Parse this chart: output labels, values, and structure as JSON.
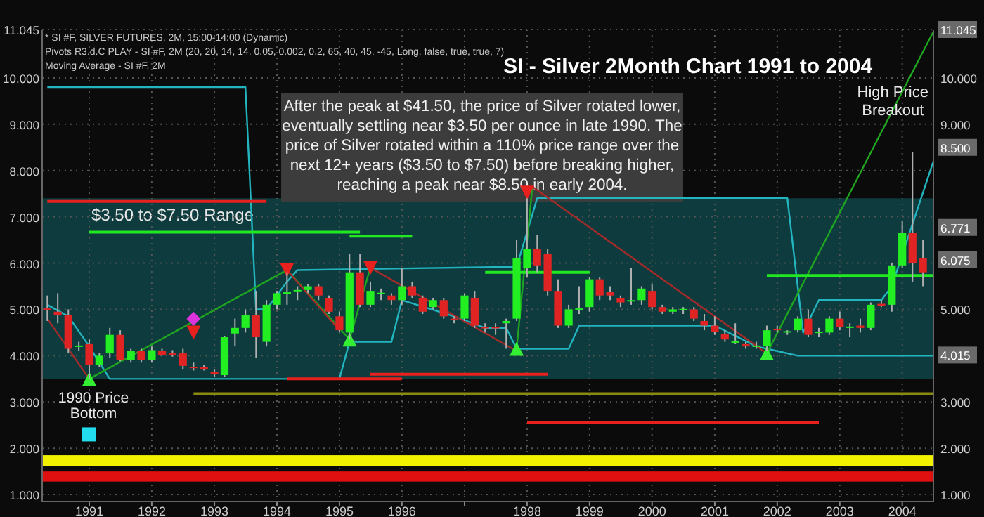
{
  "chart_data": {
    "type": "candlestick",
    "title": "SI - Silver 2Month Chart 1991 to 2004",
    "annotations": [
      "After the peak at $41.50, the price of Silver rotated lower, eventually settling near $3.50 per ounce in late 1990. The price of Silver rotated within a 110% price range over the next 12+ years ($3.50 to $7.50) before breaking higher, reaching a peak near $8.50 in early 2004.",
      "* SI #F, SILVER FUTURES, 2M, 15:00-14:00 (Dynamic)",
      "Pivots R3.d.C PLAY - SI #F, 2M (20, 20, 14, 14, 0.05, 0.002, 0.2, 65, 40, 45, -45, Long, false, true, true, 7)",
      "Moving Average - SI #F, 2M",
      {
        "text": "1990 Price Bottom",
        "x": "1991-01",
        "y": 3.5
      },
      {
        "text": "High Price Breakout",
        "x": "2004-03",
        "y": 8.4
      }
    ],
    "x": [
      "1990-05",
      "1990-07",
      "1990-09",
      "1990-11",
      "1991-01",
      "1991-03",
      "1991-05",
      "1991-07",
      "1991-09",
      "1991-11",
      "1992-01",
      "1992-03",
      "1992-05",
      "1992-07",
      "1992-09",
      "1992-11",
      "1993-01",
      "1993-03",
      "1993-05",
      "1993-07",
      "1993-09",
      "1993-11",
      "1994-01",
      "1994-03",
      "1994-05",
      "1994-07",
      "1994-09",
      "1994-11",
      "1995-01",
      "1995-03",
      "1995-05",
      "1995-07",
      "1995-09",
      "1995-11",
      "1996-01",
      "1996-03",
      "1996-05",
      "1996-07",
      "1996-09",
      "1996-11",
      "1997-01",
      "1997-03",
      "1997-05",
      "1997-07",
      "1997-09",
      "1997-11",
      "1998-01",
      "1998-03",
      "1998-05",
      "1998-07",
      "1998-09",
      "1998-11",
      "1999-01",
      "1999-03",
      "1999-05",
      "1999-07",
      "1999-09",
      "1999-11",
      "2000-01",
      "2000-03",
      "2000-05",
      "2000-07",
      "2000-09",
      "2000-11",
      "2001-01",
      "2001-03",
      "2001-05",
      "2001-07",
      "2001-09",
      "2001-11",
      "2002-01",
      "2002-03",
      "2002-05",
      "2002-07",
      "2002-09",
      "2002-11",
      "2003-01",
      "2003-03",
      "2003-05",
      "2003-07",
      "2003-09",
      "2003-11",
      "2004-01",
      "2004-03",
      "2004-05"
    ],
    "ohlc": [
      [
        5.02,
        5.3,
        4.75,
        4.98
      ],
      [
        4.95,
        5.35,
        4.7,
        4.88
      ],
      [
        4.87,
        5.0,
        4.05,
        4.15
      ],
      [
        4.2,
        4.3,
        4.1,
        4.22
      ],
      [
        4.25,
        4.35,
        3.5,
        3.8
      ],
      [
        3.8,
        4.05,
        3.75,
        4.0
      ],
      [
        4.05,
        4.6,
        3.95,
        4.45
      ],
      [
        4.45,
        4.55,
        3.88,
        3.9
      ],
      [
        3.9,
        4.15,
        3.85,
        4.1
      ],
      [
        4.1,
        4.15,
        3.85,
        3.9
      ],
      [
        3.9,
        4.2,
        3.85,
        4.12
      ],
      [
        4.1,
        4.15,
        4.0,
        4.02
      ],
      [
        4.05,
        4.12,
        3.98,
        4.04
      ],
      [
        4.05,
        4.15,
        3.7,
        3.78
      ],
      [
        3.76,
        3.85,
        3.68,
        3.74
      ],
      [
        3.75,
        3.8,
        3.68,
        3.7
      ],
      [
        3.65,
        3.7,
        3.55,
        3.6
      ],
      [
        3.58,
        4.42,
        3.55,
        4.4
      ],
      [
        4.48,
        4.8,
        4.2,
        4.6
      ],
      [
        4.6,
        5.0,
        4.5,
        4.88
      ],
      [
        4.88,
        5.4,
        3.95,
        4.4
      ],
      [
        4.3,
        5.2,
        4.2,
        5.1
      ],
      [
        5.1,
        5.4,
        5.0,
        5.35
      ],
      [
        5.36,
        5.8,
        5.1,
        5.37
      ],
      [
        5.4,
        5.5,
        5.2,
        5.42
      ],
      [
        5.42,
        5.55,
        5.35,
        5.5
      ],
      [
        5.5,
        5.55,
        5.2,
        5.3
      ],
      [
        5.25,
        5.3,
        4.9,
        4.95
      ],
      [
        4.85,
        4.95,
        4.5,
        4.55
      ],
      [
        4.5,
        6.2,
        4.35,
        5.8
      ],
      [
        5.8,
        6.2,
        5.05,
        5.1
      ],
      [
        5.1,
        5.6,
        5.05,
        5.4
      ],
      [
        5.35,
        5.45,
        5.2,
        5.36
      ],
      [
        5.3,
        5.35,
        5.1,
        5.2
      ],
      [
        5.2,
        5.9,
        5.1,
        5.5
      ],
      [
        5.5,
        5.6,
        5.25,
        5.3
      ],
      [
        5.25,
        5.3,
        4.9,
        4.95
      ],
      [
        5.05,
        5.25,
        5.0,
        5.2
      ],
      [
        5.2,
        5.25,
        4.8,
        4.85
      ],
      [
        4.8,
        4.85,
        4.7,
        4.78
      ],
      [
        4.8,
        5.35,
        4.75,
        5.3
      ],
      [
        5.25,
        5.4,
        4.6,
        4.65
      ],
      [
        4.62,
        4.7,
        4.5,
        4.6
      ],
      [
        4.62,
        4.7,
        4.45,
        4.6
      ],
      [
        4.7,
        4.8,
        4.15,
        4.75
      ],
      [
        4.8,
        6.5,
        4.75,
        6.1
      ],
      [
        5.9,
        7.4,
        5.7,
        6.3
      ],
      [
        6.3,
        6.6,
        5.8,
        5.95
      ],
      [
        6.2,
        6.3,
        5.3,
        5.4
      ],
      [
        5.4,
        5.65,
        4.6,
        4.65
      ],
      [
        4.65,
        5.1,
        4.6,
        5.0
      ],
      [
        5.0,
        5.5,
        4.9,
        5.02
      ],
      [
        5.05,
        5.7,
        4.95,
        5.65
      ],
      [
        5.65,
        5.7,
        5.2,
        5.3
      ],
      [
        5.38,
        5.5,
        5.2,
        5.3
      ],
      [
        5.25,
        5.3,
        5.05,
        5.15
      ],
      [
        5.2,
        5.9,
        5.1,
        5.2
      ],
      [
        5.2,
        5.5,
        5.1,
        5.45
      ],
      [
        5.4,
        5.55,
        5.0,
        5.05
      ],
      [
        5.05,
        5.1,
        4.9,
        4.95
      ],
      [
        4.95,
        5.05,
        4.9,
        5.0
      ],
      [
        5.0,
        5.05,
        4.9,
        5.01
      ],
      [
        5.0,
        5.05,
        4.75,
        4.8
      ],
      [
        4.75,
        4.9,
        4.55,
        4.65
      ],
      [
        4.65,
        4.85,
        4.45,
        4.52
      ],
      [
        4.47,
        4.55,
        4.3,
        4.35
      ],
      [
        4.3,
        4.7,
        4.25,
        4.31
      ],
      [
        4.25,
        4.3,
        4.15,
        4.2
      ],
      [
        4.2,
        4.3,
        4.15,
        4.22
      ],
      [
        4.2,
        4.65,
        4.1,
        4.55
      ],
      [
        4.58,
        4.65,
        4.5,
        4.55
      ],
      [
        4.52,
        4.55,
        4.45,
        4.53
      ],
      [
        4.55,
        4.85,
        4.5,
        4.8
      ],
      [
        4.8,
        5.0,
        4.4,
        4.45
      ],
      [
        4.5,
        4.6,
        4.4,
        4.52
      ],
      [
        4.5,
        4.85,
        4.45,
        4.8
      ],
      [
        4.8,
        4.95,
        4.55,
        4.62
      ],
      [
        4.62,
        4.7,
        4.4,
        4.63
      ],
      [
        4.65,
        4.8,
        4.5,
        4.6
      ],
      [
        4.6,
        5.15,
        4.55,
        5.1
      ],
      [
        5.12,
        5.2,
        5.05,
        5.08
      ],
      [
        5.1,
        6.0,
        4.95,
        5.95
      ],
      [
        5.95,
        6.9,
        5.9,
        6.65
      ],
      [
        6.65,
        8.4,
        5.6,
        6.0
      ],
      [
        6.1,
        6.5,
        5.5,
        5.8
      ]
    ],
    "series": [
      {
        "type": "line",
        "color": "#22b5c0",
        "x": [
          "1990-05",
          "1993-07",
          "1993-09",
          "1993-11",
          "1994-03",
          "1994-05",
          "1997-11",
          "1998-03",
          "2002-03",
          "2002-06",
          "2002-09",
          "2003-09",
          "2003-11",
          "2004-07"
        ],
        "values": [
          9.8,
          9.8,
          5.0,
          5.0,
          5.6,
          5.85,
          5.92,
          7.4,
          7.4,
          4.5,
          5.2,
          5.2,
          5.5,
          8.2
        ]
      },
      {
        "type": "line",
        "color": "#22b5c0",
        "x": [
          "1990-05",
          "1990-09",
          "1991-01",
          "1991-05",
          "1995-01",
          "1995-03",
          "1995-11",
          "1996-01",
          "1996-11",
          "1997-05",
          "1997-09",
          "1997-11",
          "1998-09",
          "1998-11",
          "2001-01",
          "2001-09",
          "2002-01",
          "2002-05",
          "2004-07"
        ],
        "values": [
          5.1,
          4.85,
          4.2,
          3.5,
          3.5,
          4.3,
          4.3,
          5.2,
          4.85,
          4.6,
          4.6,
          4.15,
          4.15,
          4.65,
          4.65,
          4.2,
          4.1,
          4.0,
          4.0
        ]
      },
      {
        "type": "line",
        "color": "#1fa51f",
        "x": [
          "1991-01",
          "1994-03",
          "1995-03",
          "1995-07",
          "1996-01",
          "1997-11",
          "1998-02",
          "1999-01",
          "2001-11",
          "2004-07"
        ],
        "values": [
          3.5,
          5.85,
          4.35,
          5.9,
          null,
          4.15,
          7.65,
          null,
          4.05,
          11.0
        ]
      },
      {
        "type": "line",
        "color": "#a52a2a",
        "x": [
          "1990-05",
          "1991-01",
          "1992-01",
          "1994-03",
          "1995-01",
          "1995-04",
          "1995-07",
          "1997-11",
          "1998-01",
          "1998-02",
          "2001-11"
        ],
        "values": [
          4.8,
          3.5,
          null,
          5.85,
          4.55,
          null,
          5.9,
          4.1,
          null,
          7.65,
          4.05
        ]
      },
      {
        "type": "line",
        "color": "#e8201e",
        "x": [
          "1990-05",
          "1993-11"
        ],
        "values": [
          7.33,
          7.33
        ]
      },
      {
        "type": "line",
        "color": "#22e822",
        "x": [
          "1991-01",
          "1995-05"
        ],
        "values": [
          6.67,
          6.67
        ]
      },
      {
        "type": "line",
        "color": "#22e822",
        "x": [
          "1995-03",
          "1996-03"
        ],
        "values": [
          6.58,
          6.58
        ]
      },
      {
        "type": "line",
        "color": "#22e822",
        "x": [
          "1997-05",
          "1999-01"
        ],
        "values": [
          5.8,
          5.8
        ]
      },
      {
        "type": "line",
        "color": "#22e822",
        "x": [
          "2001-11",
          "2004-07"
        ],
        "values": [
          5.73,
          5.73
        ]
      },
      {
        "type": "line",
        "color": "#e8201e",
        "x": [
          "1994-03",
          "1996-01"
        ],
        "values": [
          3.5,
          3.5
        ]
      },
      {
        "type": "line",
        "color": "#e8201e",
        "x": [
          "1995-07",
          "1998-05"
        ],
        "values": [
          3.6,
          3.6
        ]
      },
      {
        "type": "line",
        "color": "#e8201e",
        "x": [
          "1998-01",
          "2002-09"
        ],
        "values": [
          2.55,
          2.55
        ]
      },
      {
        "type": "line",
        "color": "#8a8a10",
        "x": [
          "1992-09",
          "2004-07"
        ],
        "values": [
          3.18,
          3.18
        ]
      },
      {
        "type": "scatter",
        "marker": "triangle",
        "color": "#33ee33",
        "x": [
          "1991-01",
          "1995-03",
          "1997-11",
          "2001-11"
        ],
        "values": [
          3.5,
          4.35,
          4.15,
          4.05
        ]
      },
      {
        "type": "scatter",
        "marker": "triangle-down",
        "color": "#e8201e",
        "x": [
          "1994-03",
          "1995-07",
          "1998-01",
          "1992-09"
        ],
        "values": [
          5.85,
          5.9,
          7.52,
          4.5
        ]
      },
      {
        "type": "scatter",
        "marker": "diamond",
        "color": "#dd33dd",
        "x": [
          "1992-09"
        ],
        "values": [
          4.8
        ]
      },
      {
        "type": "scatter",
        "marker": "square",
        "color": "#22ddee",
        "x": [
          "1991-01"
        ],
        "values": [
          2.3
        ]
      }
    ],
    "bands": [
      {
        "axis": "y",
        "from": 3.5,
        "to": 7.4,
        "label": "$3.50 to $7.50 Range",
        "color": "#0e3c3e"
      }
    ],
    "xlim": [
      "1990-04",
      "2004-07"
    ],
    "xticks": [
      {
        "value": "1991-01",
        "label": "1991"
      },
      {
        "value": "1992-01",
        "label": "1992"
      },
      {
        "value": "1993-01",
        "label": "1993"
      },
      {
        "value": "1994-01",
        "label": "1994"
      },
      {
        "value": "1995-01",
        "label": "1995"
      },
      {
        "value": "1996-01",
        "label": "1996"
      },
      {
        "value": "1997-01",
        "label": null
      },
      {
        "value": "1998-01",
        "label": "1998"
      },
      {
        "value": "1999-01",
        "label": "1999"
      },
      {
        "value": "2000-01",
        "label": "2000"
      },
      {
        "value": "2001-01",
        "label": "2001"
      },
      {
        "value": "2002-01",
        "label": "2002"
      },
      {
        "value": "2003-01",
        "label": "2003"
      },
      {
        "value": "2004-01",
        "label": "2004"
      }
    ],
    "ylim": [
      0.85,
      11.045
    ],
    "yticks": [
      {
        "value": 1,
        "label": "1.000"
      },
      {
        "value": 2,
        "label": "2.000"
      },
      {
        "value": 3,
        "label": "3.000"
      },
      {
        "value": 4,
        "label": "4.000"
      },
      {
        "value": 5,
        "label": "5.000"
      },
      {
        "value": 6,
        "label": "6.000"
      },
      {
        "value": 7,
        "label": "7.000"
      },
      {
        "value": 8,
        "label": "8.000"
      },
      {
        "value": 9,
        "label": "9.000"
      },
      {
        "value": 10,
        "label": "10.000"
      },
      {
        "value": 11.045,
        "label": "11.045"
      }
    ],
    "y2lim": [
      0.85,
      11.045
    ],
    "y2ticks": [
      {
        "value": 1,
        "label": "1.000"
      },
      {
        "value": 2,
        "label": "2.000"
      },
      {
        "value": 3,
        "label": "3.000"
      },
      {
        "value": 4.015,
        "label": "4.015"
      },
      {
        "value": 5,
        "label": "5.000"
      },
      {
        "value": 6.075,
        "label": "6.075"
      },
      {
        "value": 6.771,
        "label": "6.771"
      },
      {
        "value": 8.5,
        "label": "8.500"
      },
      {
        "value": 9,
        "label": "9.000"
      },
      {
        "value": 10,
        "label": "10.000"
      },
      {
        "value": 11.045,
        "label": "11.045"
      }
    ],
    "grid": true
  }
}
